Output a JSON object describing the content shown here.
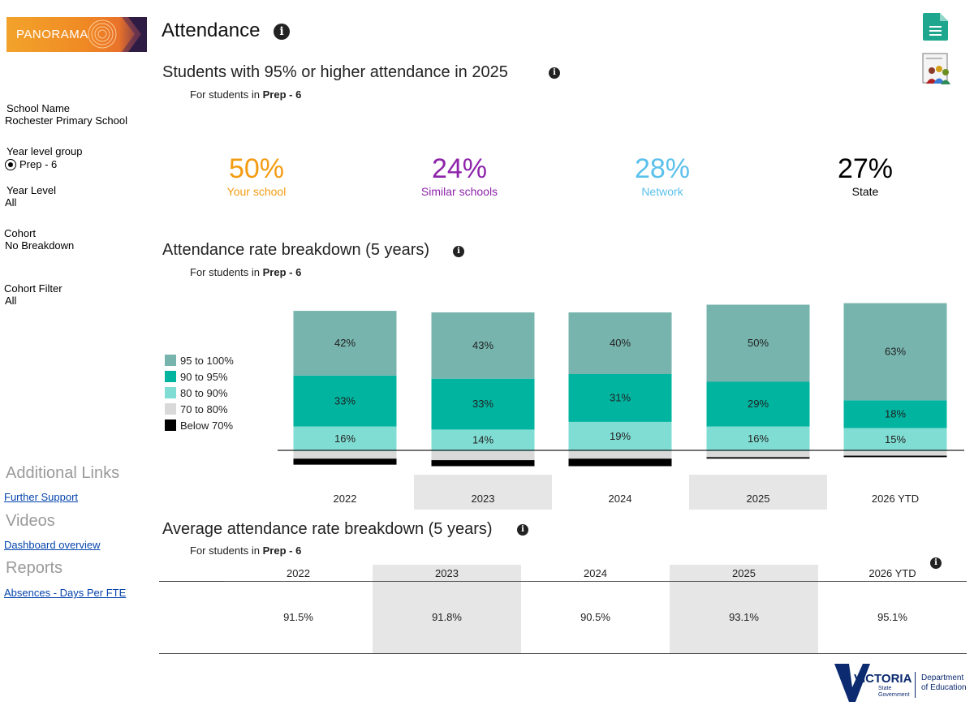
{
  "app": {
    "logo_text": "PANORAMA",
    "page_title": "Attendance"
  },
  "sidebar": {
    "school_name_label": "School Name",
    "school_name_value": "Rochester Primary School",
    "year_level_group_label": "Year level group",
    "year_level_group_value": "Prep - 6",
    "year_level_label": "Year Level",
    "year_level_value": "All",
    "cohort_label": "Cohort",
    "cohort_value": "No Breakdown",
    "cohort_filter_label": "Cohort Filter",
    "cohort_filter_value": "All",
    "additional_links_heading": "Additional Links",
    "further_support_link": "Further Support",
    "videos_heading": "Videos",
    "dashboard_overview_link": "Dashboard overview",
    "reports_heading": "Reports",
    "absences_link": "Absences - Days Per FTE"
  },
  "kpi_section": {
    "title": "Students with 95% or higher attendance in 2025",
    "subtitle_prefix": "For students in ",
    "subtitle_bold": "Prep - 6",
    "items": [
      {
        "value": "50%",
        "label": "Your school",
        "color": "#f39c12"
      },
      {
        "value": "24%",
        "label": "Similar schools",
        "color": "#8e24aa"
      },
      {
        "value": "28%",
        "label": "Network",
        "color": "#5bc0eb"
      },
      {
        "value": "27%",
        "label": "State",
        "color": "#000000"
      }
    ]
  },
  "breakdown_section": {
    "title": "Attendance rate breakdown (5 years)",
    "subtitle_prefix": "For students in ",
    "subtitle_bold": "Prep - 6"
  },
  "chart_data": {
    "type": "bar",
    "stacked": true,
    "title": "Attendance rate breakdown (5 years)",
    "categories": [
      "2022",
      "2023",
      "2024",
      "2025",
      "2026 YTD"
    ],
    "series": [
      {
        "name": "95 to 100%",
        "color": "#76b4ad",
        "values": [
          42,
          43,
          40,
          50,
          63
        ],
        "labels": [
          "42%",
          "43%",
          "40%",
          "50%",
          "63%"
        ]
      },
      {
        "name": "90 to 95%",
        "color": "#00b4a0",
        "values": [
          33,
          33,
          31,
          29,
          18
        ],
        "labels": [
          "33%",
          "33%",
          "31%",
          "29%",
          "18%"
        ]
      },
      {
        "name": "80 to 90%",
        "color": "#80ddd3",
        "values": [
          16,
          14,
          19,
          16,
          15
        ],
        "labels": [
          "16%",
          "14%",
          "19%",
          "16%",
          "15%"
        ]
      },
      {
        "name": "70 to 80%",
        "color": "#d9d9d9",
        "values": [
          5,
          6,
          5,
          4,
          3
        ]
      },
      {
        "name": "Below 70%",
        "color": "#000000",
        "values": [
          4,
          4,
          5,
          1,
          1
        ]
      }
    ],
    "legend_position": "left"
  },
  "average_section": {
    "title": "Average attendance rate breakdown (5 years)",
    "subtitle_prefix": "For students in ",
    "subtitle_bold": "Prep - 6",
    "headers": [
      "2022",
      "2023",
      "2024",
      "2025",
      "2026 YTD"
    ],
    "values": [
      "91.5%",
      "91.8%",
      "90.5%",
      "93.1%",
      "95.1%"
    ]
  },
  "footer": {
    "victoria": "VICTORIA",
    "state_government": "State\nGovernment",
    "department_line1": "Department",
    "department_line2": "of Education"
  }
}
